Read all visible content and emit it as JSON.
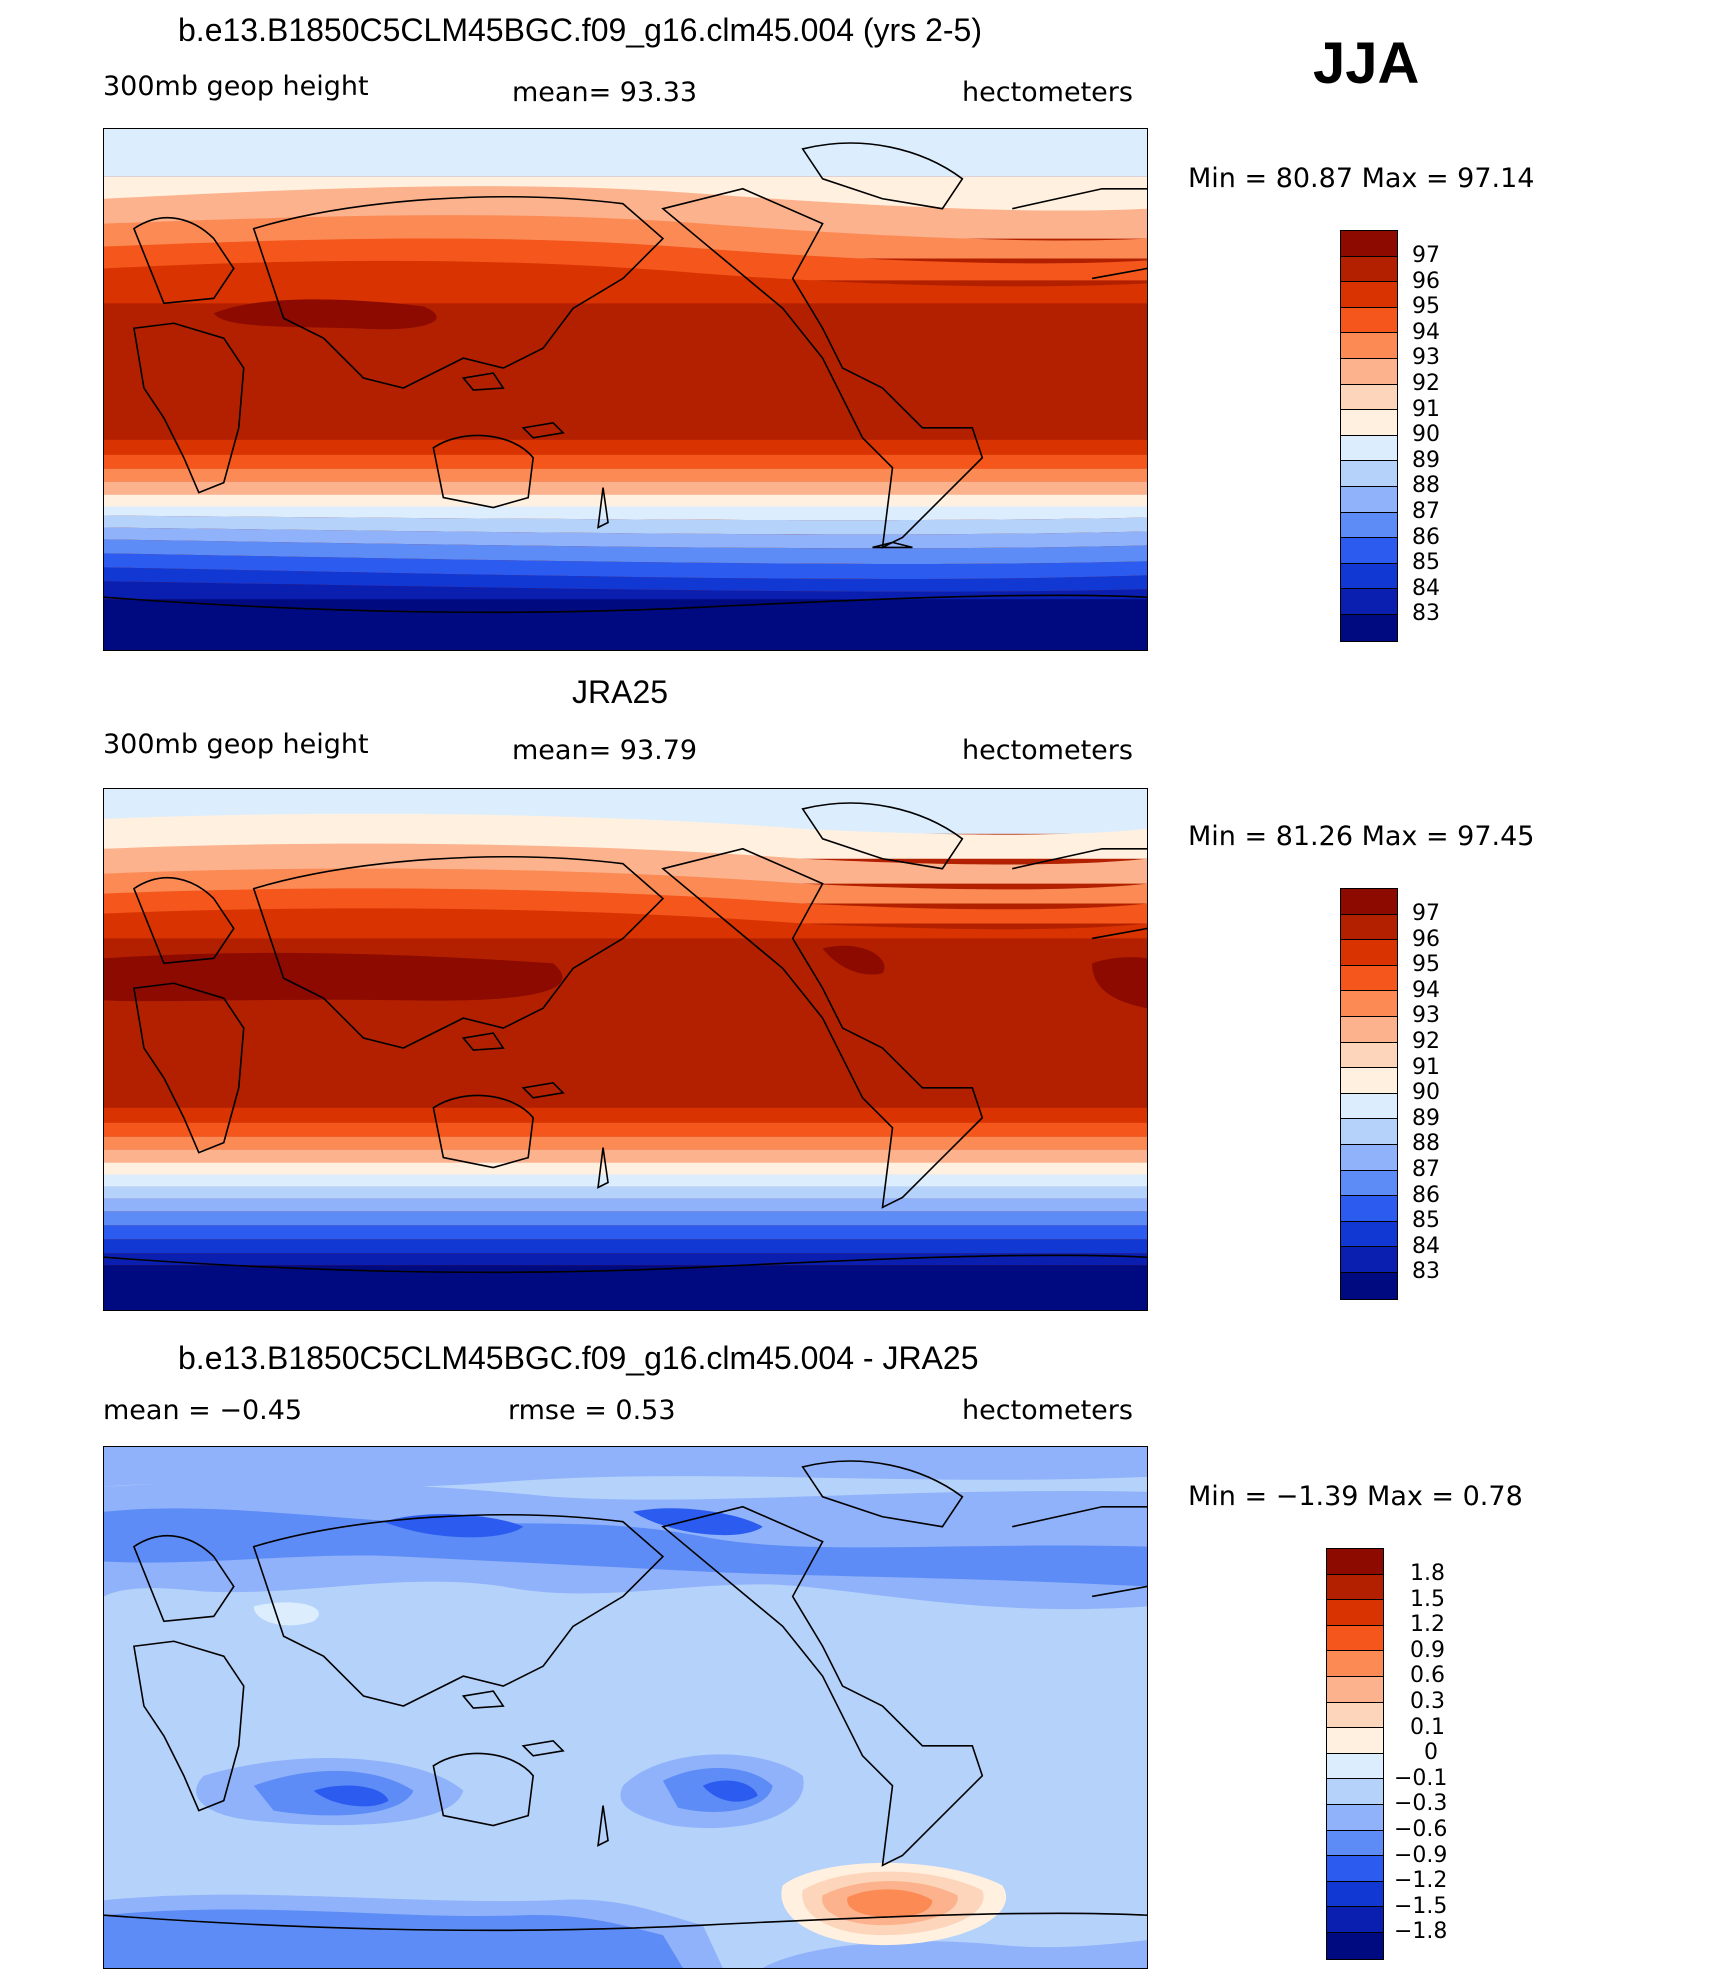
{
  "season": "JJA",
  "panels": [
    {
      "title": "b.e13.B1850C5CLM45BGC.f09_g16.clm45.004 (yrs 2-5)",
      "left": "300mb  geop  height",
      "center": "mean=   93.33",
      "right": "hectometers",
      "minmax": "Min  =    80.87  Max  =    97.14",
      "colorbar": {
        "labels": [
          "97",
          "96",
          "95",
          "94",
          "93",
          "92",
          "91",
          "90",
          "89",
          "88",
          "87",
          "86",
          "85",
          "84",
          "83"
        ],
        "colors": [
          "#8c0a00",
          "#b22000",
          "#d83300",
          "#f4561b",
          "#fb8a55",
          "#fcb28c",
          "#fdd5bb",
          "#fff0e0",
          "#dceefd",
          "#b5d2fb",
          "#8fb2fa",
          "#5e8cf6",
          "#2b5cef",
          "#1238d4",
          "#0a1fb0",
          "#000a80"
        ]
      }
    },
    {
      "title": "JRA25",
      "left": "300mb  geop  height",
      "center": "mean=   93.79",
      "right": "hectometers",
      "minmax": "Min  =    81.26  Max  =    97.45",
      "colorbar": {
        "labels": [
          "97",
          "96",
          "95",
          "94",
          "93",
          "92",
          "91",
          "90",
          "89",
          "88",
          "87",
          "86",
          "85",
          "84",
          "83"
        ],
        "colors": [
          "#8c0a00",
          "#b22000",
          "#d83300",
          "#f4561b",
          "#fb8a55",
          "#fcb28c",
          "#fdd5bb",
          "#fff0e0",
          "#dceefd",
          "#b5d2fb",
          "#8fb2fa",
          "#5e8cf6",
          "#2b5cef",
          "#1238d4",
          "#0a1fb0",
          "#000a80"
        ]
      }
    },
    {
      "title": "b.e13.B1850C5CLM45BGC.f09_g16.clm45.004 - JRA25",
      "left": "mean  =    −0.45",
      "center": "rmse  =     0.53",
      "right": "hectometers",
      "minmax": "Min  =    −1.39  Max  =      0.78",
      "colorbar": {
        "labels": [
          "1.8",
          "1.5",
          "1.2",
          "0.9",
          "0.6",
          "0.3",
          "0.1",
          "0",
          "−0.1",
          "−0.3",
          "−0.6",
          "−0.9",
          "−1.2",
          "−1.5",
          "−1.8"
        ],
        "colors": [
          "#8c0a00",
          "#b22000",
          "#d83300",
          "#f4561b",
          "#fb8a55",
          "#fcb28c",
          "#fdd5bb",
          "#fff0e0",
          "#dceefd",
          "#b5d2fb",
          "#8fb2fa",
          "#5e8cf6",
          "#2b5cef",
          "#1238d4",
          "#0a1fb0",
          "#000a80"
        ]
      }
    }
  ]
}
